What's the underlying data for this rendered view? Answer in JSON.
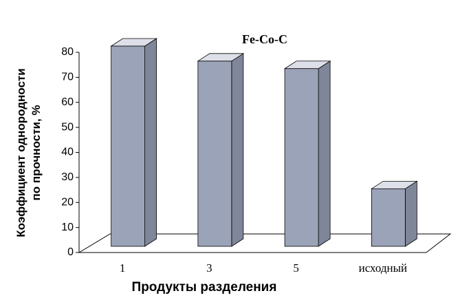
{
  "chart_data": {
    "type": "bar3d",
    "title": "Fe-Co-C",
    "xlabel": "Продукты разделения",
    "ylabel": [
      "Коэффициент однородности",
      "по прочности, %"
    ],
    "categories": [
      "1",
      "3",
      "5",
      "исходный"
    ],
    "values": [
      80,
      74,
      71,
      23
    ],
    "color": "#9ba3b8",
    "ylim": [
      0,
      80
    ],
    "yticks": [
      0,
      10,
      20,
      30,
      40,
      50,
      60,
      70,
      80
    ]
  }
}
